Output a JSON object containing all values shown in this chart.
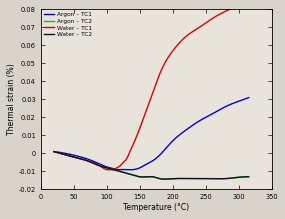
{
  "title": "",
  "xlabel": "Temperature (°C)",
  "ylabel": "Thermal strain (%)",
  "xlim": [
    0,
    350
  ],
  "ylim": [
    -0.02,
    0.08
  ],
  "yticks": [
    -0.02,
    -0.01,
    0,
    0.01,
    0.02,
    0.03,
    0.04,
    0.05,
    0.06,
    0.07,
    0.08
  ],
  "xticks": [
    0,
    50,
    100,
    150,
    200,
    250,
    300,
    350
  ],
  "legend": [
    {
      "label": "Argon – TC1",
      "color": "#0000dd"
    },
    {
      "label": "Argon – TC2",
      "color": "#00cc00"
    },
    {
      "label": "Water – TC1",
      "color": "#dd0000"
    },
    {
      "label": "Water – TC2",
      "color": "#111122"
    }
  ],
  "background_fig": "#d8d4cc",
  "background_ax": "#e8e4dc",
  "series": {
    "argon_tc1": {
      "color": "#0000dd",
      "x": [
        20,
        30,
        50,
        70,
        90,
        100,
        110,
        115,
        120,
        130,
        140,
        150,
        160,
        170,
        180,
        190,
        200,
        220,
        240,
        260,
        280,
        300,
        315
      ],
      "y": [
        0.001,
        0.0005,
        -0.001,
        -0.003,
        -0.006,
        -0.0075,
        -0.0085,
        -0.009,
        -0.009,
        -0.009,
        -0.009,
        -0.008,
        -0.006,
        -0.004,
        -0.001,
        0.003,
        0.007,
        0.013,
        0.018,
        0.022,
        0.026,
        0.029,
        0.031
      ]
    },
    "argon_tc2": {
      "color": "#00cc00",
      "x": [
        20,
        30,
        50,
        70,
        90,
        100,
        110,
        120,
        130,
        140,
        150,
        160,
        170,
        180,
        200,
        220,
        250,
        280,
        310,
        315
      ],
      "y": [
        0.001,
        0.0,
        -0.002,
        -0.004,
        -0.007,
        -0.008,
        -0.009,
        -0.01,
        -0.011,
        -0.012,
        -0.013,
        -0.013,
        -0.013,
        -0.014,
        -0.014,
        -0.014,
        -0.014,
        -0.014,
        -0.013,
        -0.013
      ]
    },
    "water_tc1": {
      "color": "#dd0000",
      "x": [
        20,
        30,
        50,
        70,
        90,
        100,
        105,
        110,
        115,
        120,
        125,
        130,
        135,
        140,
        150,
        160,
        170,
        180,
        200,
        220,
        240,
        260,
        280,
        300,
        315
      ],
      "y": [
        0.001,
        0.0,
        -0.002,
        -0.004,
        -0.007,
        -0.009,
        -0.009,
        -0.009,
        -0.008,
        -0.007,
        -0.005,
        -0.003,
        0.001,
        0.005,
        0.014,
        0.024,
        0.034,
        0.044,
        0.057,
        0.065,
        0.07,
        0.075,
        0.079,
        0.082,
        0.083
      ]
    },
    "water_tc2": {
      "color": "#111122",
      "x": [
        20,
        30,
        50,
        70,
        90,
        100,
        110,
        120,
        130,
        140,
        150,
        160,
        170,
        180,
        200,
        220,
        250,
        280,
        310,
        315
      ],
      "y": [
        0.001,
        0.0,
        -0.002,
        -0.004,
        -0.007,
        -0.008,
        -0.009,
        -0.01,
        -0.011,
        -0.012,
        -0.013,
        -0.013,
        -0.013,
        -0.014,
        -0.014,
        -0.014,
        -0.014,
        -0.014,
        -0.013,
        -0.013
      ]
    }
  }
}
